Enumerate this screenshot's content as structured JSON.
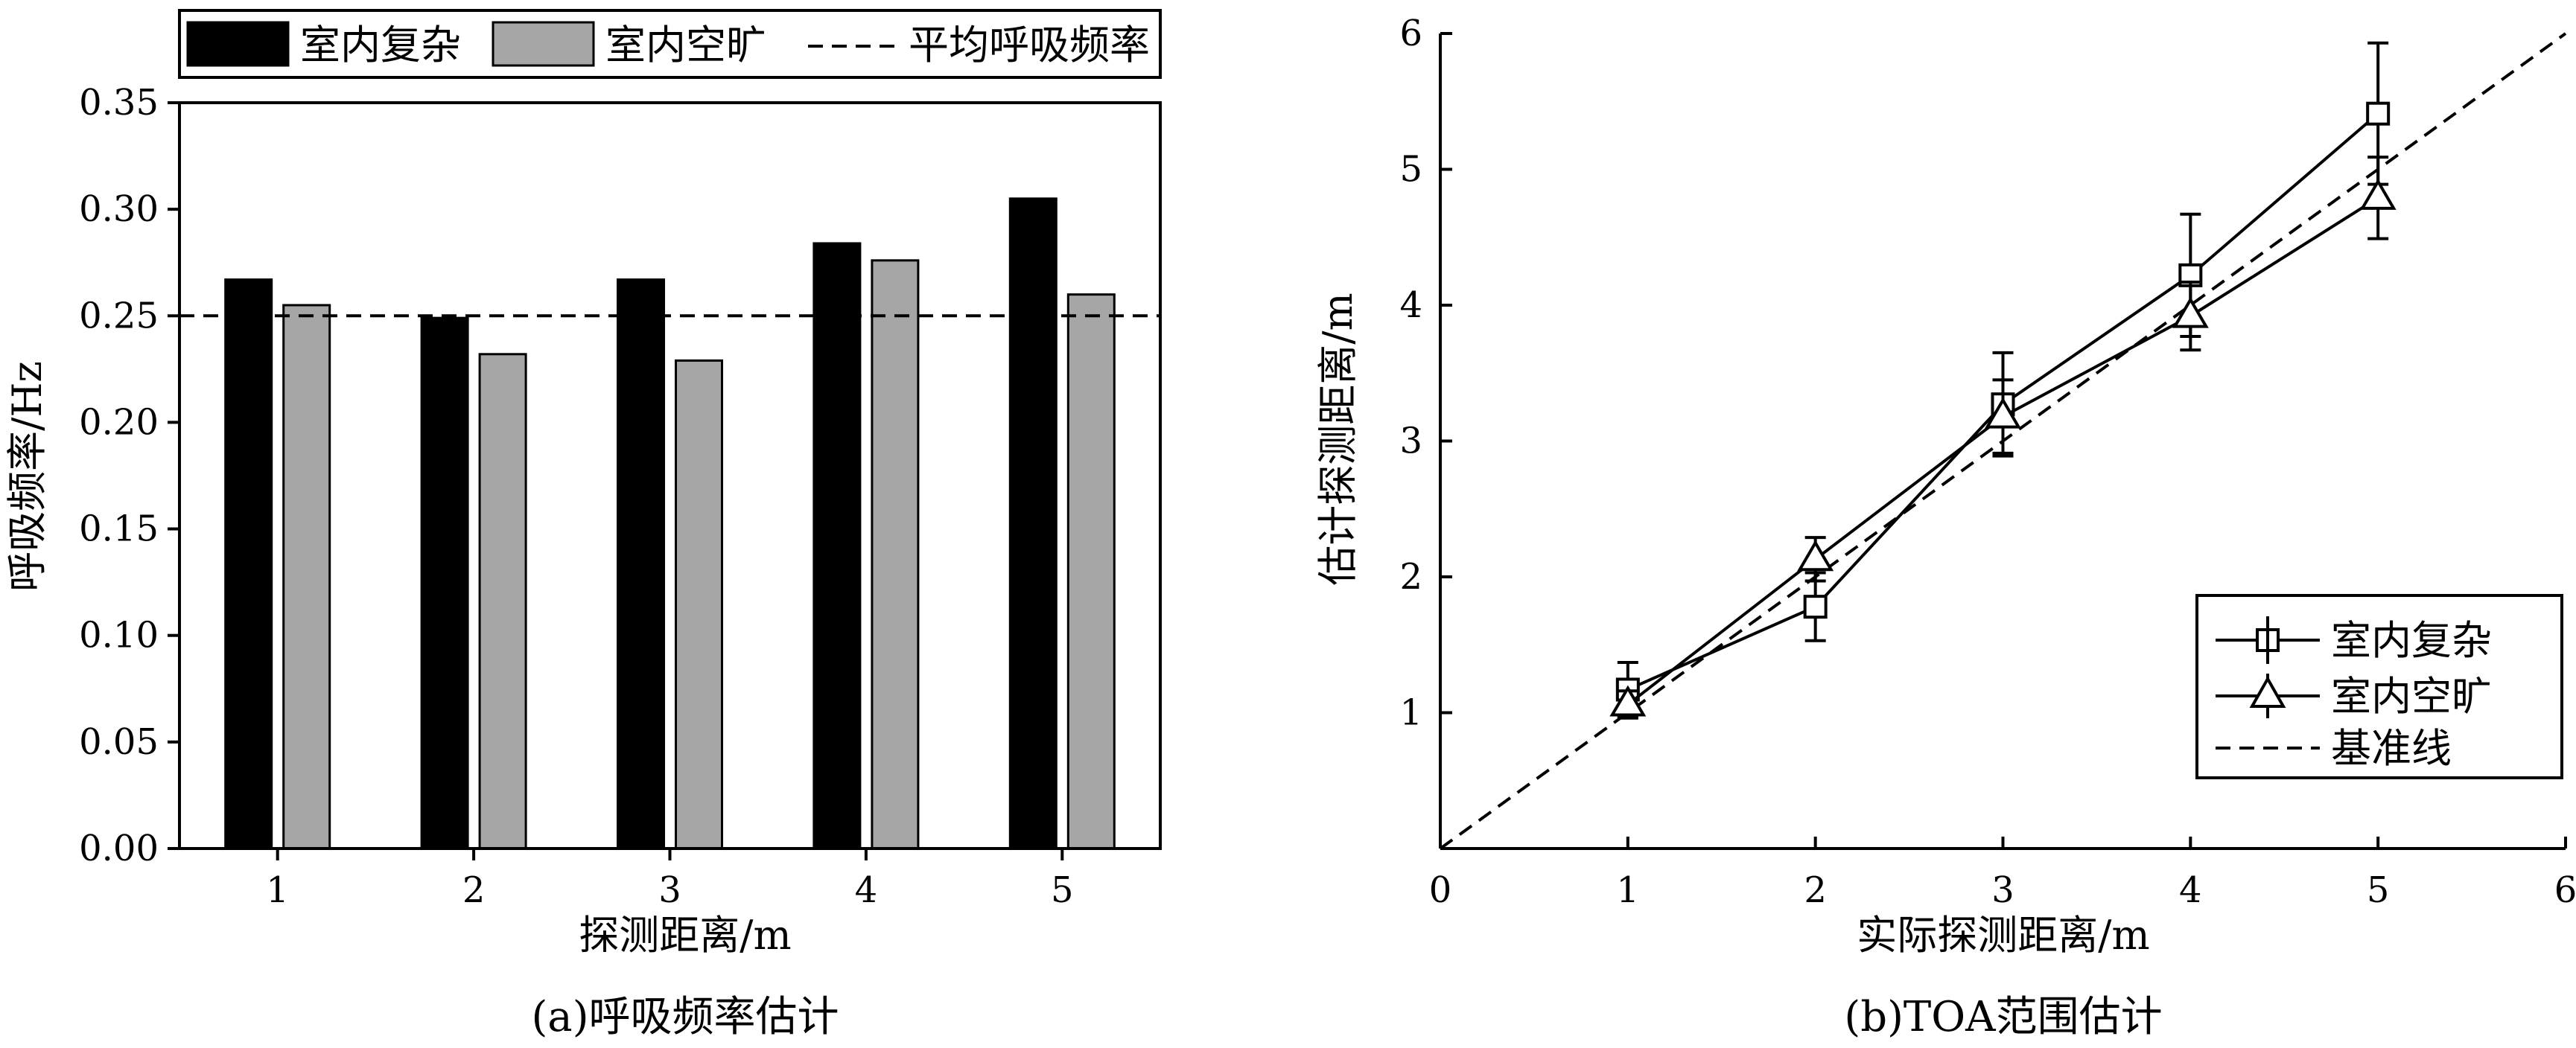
{
  "chart_data": [
    {
      "type": "bar",
      "caption": "(a)呼吸频率估计",
      "xlabel": "探测距离/m",
      "ylabel": "呼吸频率/Hz",
      "categories": [
        "1",
        "2",
        "3",
        "4",
        "5"
      ],
      "ylim": [
        0,
        0.35
      ],
      "yticks": [
        "0.00",
        "0.05",
        "0.10",
        "0.15",
        "0.20",
        "0.25",
        "0.30",
        "0.35"
      ],
      "series": [
        {
          "name": "室内复杂",
          "color": "#000000",
          "values": [
            0.267,
            0.249,
            0.267,
            0.284,
            0.305
          ]
        },
        {
          "name": "室内空旷",
          "color": "#a6a6a6",
          "values": [
            0.255,
            0.232,
            0.229,
            0.276,
            0.26
          ]
        }
      ],
      "reference_line": {
        "name": "平均呼吸频率",
        "value": 0.25,
        "style": "dashed"
      },
      "legend_position": "top"
    },
    {
      "type": "line",
      "caption": "(b)TOA范围估计",
      "xlabel": "实际探测距离/m",
      "ylabel": "估计探测距离/m",
      "xlim": [
        0,
        6
      ],
      "ylim": [
        0,
        6
      ],
      "xticks": [
        "0",
        "1",
        "2",
        "3",
        "4",
        "5",
        "6"
      ],
      "yticks": [
        "1",
        "2",
        "3",
        "4",
        "5",
        "6"
      ],
      "series": [
        {
          "name": "室内复杂",
          "marker": "square",
          "x": [
            1,
            2,
            3,
            4,
            5
          ],
          "y": [
            1.17,
            1.78,
            3.27,
            4.22,
            5.41
          ],
          "err": [
            0.2,
            0.25,
            0.38,
            0.45,
            0.52
          ]
        },
        {
          "name": "室内空旷",
          "marker": "triangle",
          "x": [
            1,
            2,
            3,
            4,
            5
          ],
          "y": [
            1.06,
            2.13,
            3.18,
            3.92,
            4.79
          ],
          "err": [
            0.1,
            0.16,
            0.27,
            0.25,
            0.3
          ]
        }
      ],
      "baseline": {
        "name": "基准线",
        "x": [
          0,
          6
        ],
        "y": [
          0,
          6
        ],
        "style": "dashed"
      },
      "legend_position": "bottom-right"
    }
  ]
}
